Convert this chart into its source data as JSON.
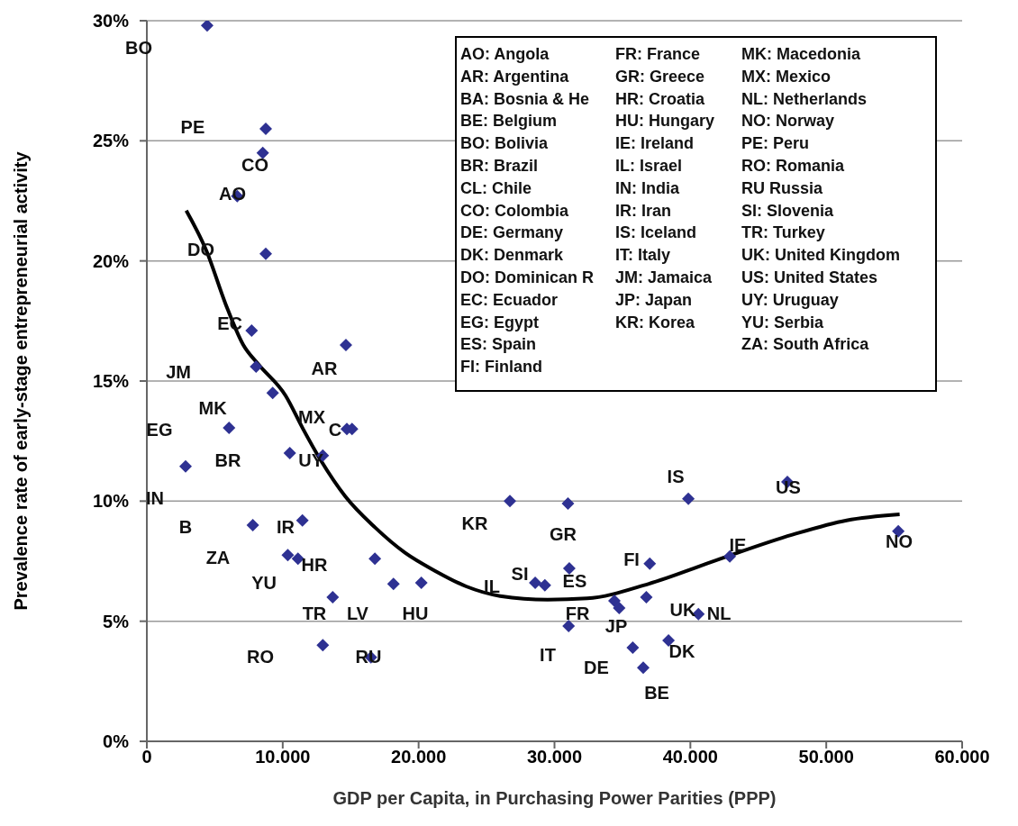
{
  "chart_data": {
    "type": "scatter",
    "xlabel": "GDP per Capita, in Purchasing Power Parities (PPP)",
    "ylabel": "Prevalence rate of early-stage entrepreneurial activity",
    "xlim": [
      0,
      60000
    ],
    "xticks": [
      0,
      {
        "value": 10000,
        "label": "10.000"
      },
      {
        "value": 20000,
        "label": "20.000"
      },
      {
        "value": 30000,
        "label": "30.000"
      },
      {
        "value": 40000,
        "label": "40.000"
      },
      {
        "value": 50000,
        "label": "50.000"
      },
      {
        "value": 60000,
        "label": "60.000"
      }
    ],
    "ylim": [
      0,
      30
    ],
    "yticks": [
      {
        "value": 0,
        "label": "0%"
      },
      {
        "value": 5,
        "label": "5%"
      },
      {
        "value": 10,
        "label": "10%"
      },
      {
        "value": 15,
        "label": "15%"
      },
      {
        "value": 20,
        "label": "20%"
      },
      {
        "value": 25,
        "label": "25%"
      },
      {
        "value": 30,
        "label": "30%"
      }
    ],
    "grid": "y",
    "series": [
      {
        "type": "scatter",
        "color": "#2e3192",
        "marker": "diamond",
        "x": [
          4440,
          8750,
          8530,
          6650,
          8750,
          7710,
          14650,
          8040,
          9260,
          6050,
          14720,
          15100,
          2850,
          10520,
          12950,
          26720,
          7800,
          11450,
          10370,
          11120,
          16780,
          18150,
          20200,
          13680,
          12950,
          16490,
          30990,
          39850,
          47140,
          55300,
          37010,
          42900,
          31090,
          28580,
          29290,
          34410,
          34760,
          36760,
          40590,
          31040,
          35760,
          38390,
          36530
        ],
        "values": [
          29.8,
          25.5,
          24.5,
          22.7,
          20.3,
          17.1,
          16.5,
          15.6,
          14.5,
          13.05,
          13,
          13,
          11.45,
          12,
          11.9,
          10,
          9,
          9.2,
          7.75,
          7.6,
          7.6,
          6.55,
          6.6,
          6,
          4,
          3.5,
          9.9,
          10.1,
          10.8,
          8.75,
          7.4,
          7.7,
          7.2,
          6.6,
          6.5,
          5.85,
          5.55,
          6,
          5.3,
          4.8,
          3.9,
          4.2,
          3.07
        ]
      },
      {
        "type": "line",
        "color": "#000000",
        "marker": "none",
        "line_style": "solid",
        "x": [
          2900,
          4400,
          5800,
          7100,
          8200,
          10200,
          11500,
          12800,
          14600,
          16800,
          19000,
          21200,
          23500,
          26000,
          29500,
          32400,
          36900,
          42200,
          47500,
          51500,
          55400
        ],
        "values": [
          22.1,
          20.4,
          18.2,
          16.5,
          15.7,
          14.4,
          13,
          11.7,
          10.2,
          8.9,
          7.85,
          7.1,
          6.45,
          6.05,
          5.9,
          5.95,
          6.55,
          7.6,
          8.6,
          9.2,
          9.45
        ]
      }
    ],
    "annotations": [
      "BO",
      "PE",
      "CO",
      "AO",
      "DO",
      "EC",
      "JM",
      "AR",
      "MK",
      "EG",
      "MX",
      "C",
      "BR",
      "UY",
      "IN",
      "B",
      "IR",
      "ZA",
      "HR",
      "YU",
      "TR",
      "LV",
      "HU",
      "RO",
      "RU",
      "KR",
      "GR",
      "SI",
      "IL",
      "ES",
      "FR",
      "IT",
      "DE",
      "JP",
      "FI",
      "UK",
      "DK",
      "BE",
      "NL",
      "IS",
      "US",
      "IE",
      "NO",
      "AO: Angola",
      "AR: Argentina",
      "BA: Bosnia & He",
      "BE: Belgium",
      "BO: Bolivia",
      "BR: Brazil",
      "CL: Chile",
      "CO: Colombia",
      "DE: Germany",
      "DK: Denmark",
      "DO: Dominican R",
      "EC: Ecuador",
      "EG: Egypt",
      "ES: Spain",
      "FI: Finland",
      "FR: France",
      "GR: Greece",
      "HR: Croatia",
      "HU: Hungary",
      "IE: Ireland",
      "IL: Israel",
      "IN: India",
      "IR: Iran",
      "IS: Iceland",
      "IT: Italy",
      "JM: Jamaica",
      "JP: Japan",
      "KR: Korea",
      "MK: Macedonia",
      "MX: Mexico",
      "NL: Netherlands",
      "NO: Norway",
      "PE: Peru",
      "RO: Romania",
      "RU Russia",
      "SI: Slovenia",
      "TR: Turkey",
      "UK: United Kingdom",
      "US: United States",
      "UY: Uruguay",
      "YU: Serbia",
      "ZA: South Africa"
    ]
  }
}
